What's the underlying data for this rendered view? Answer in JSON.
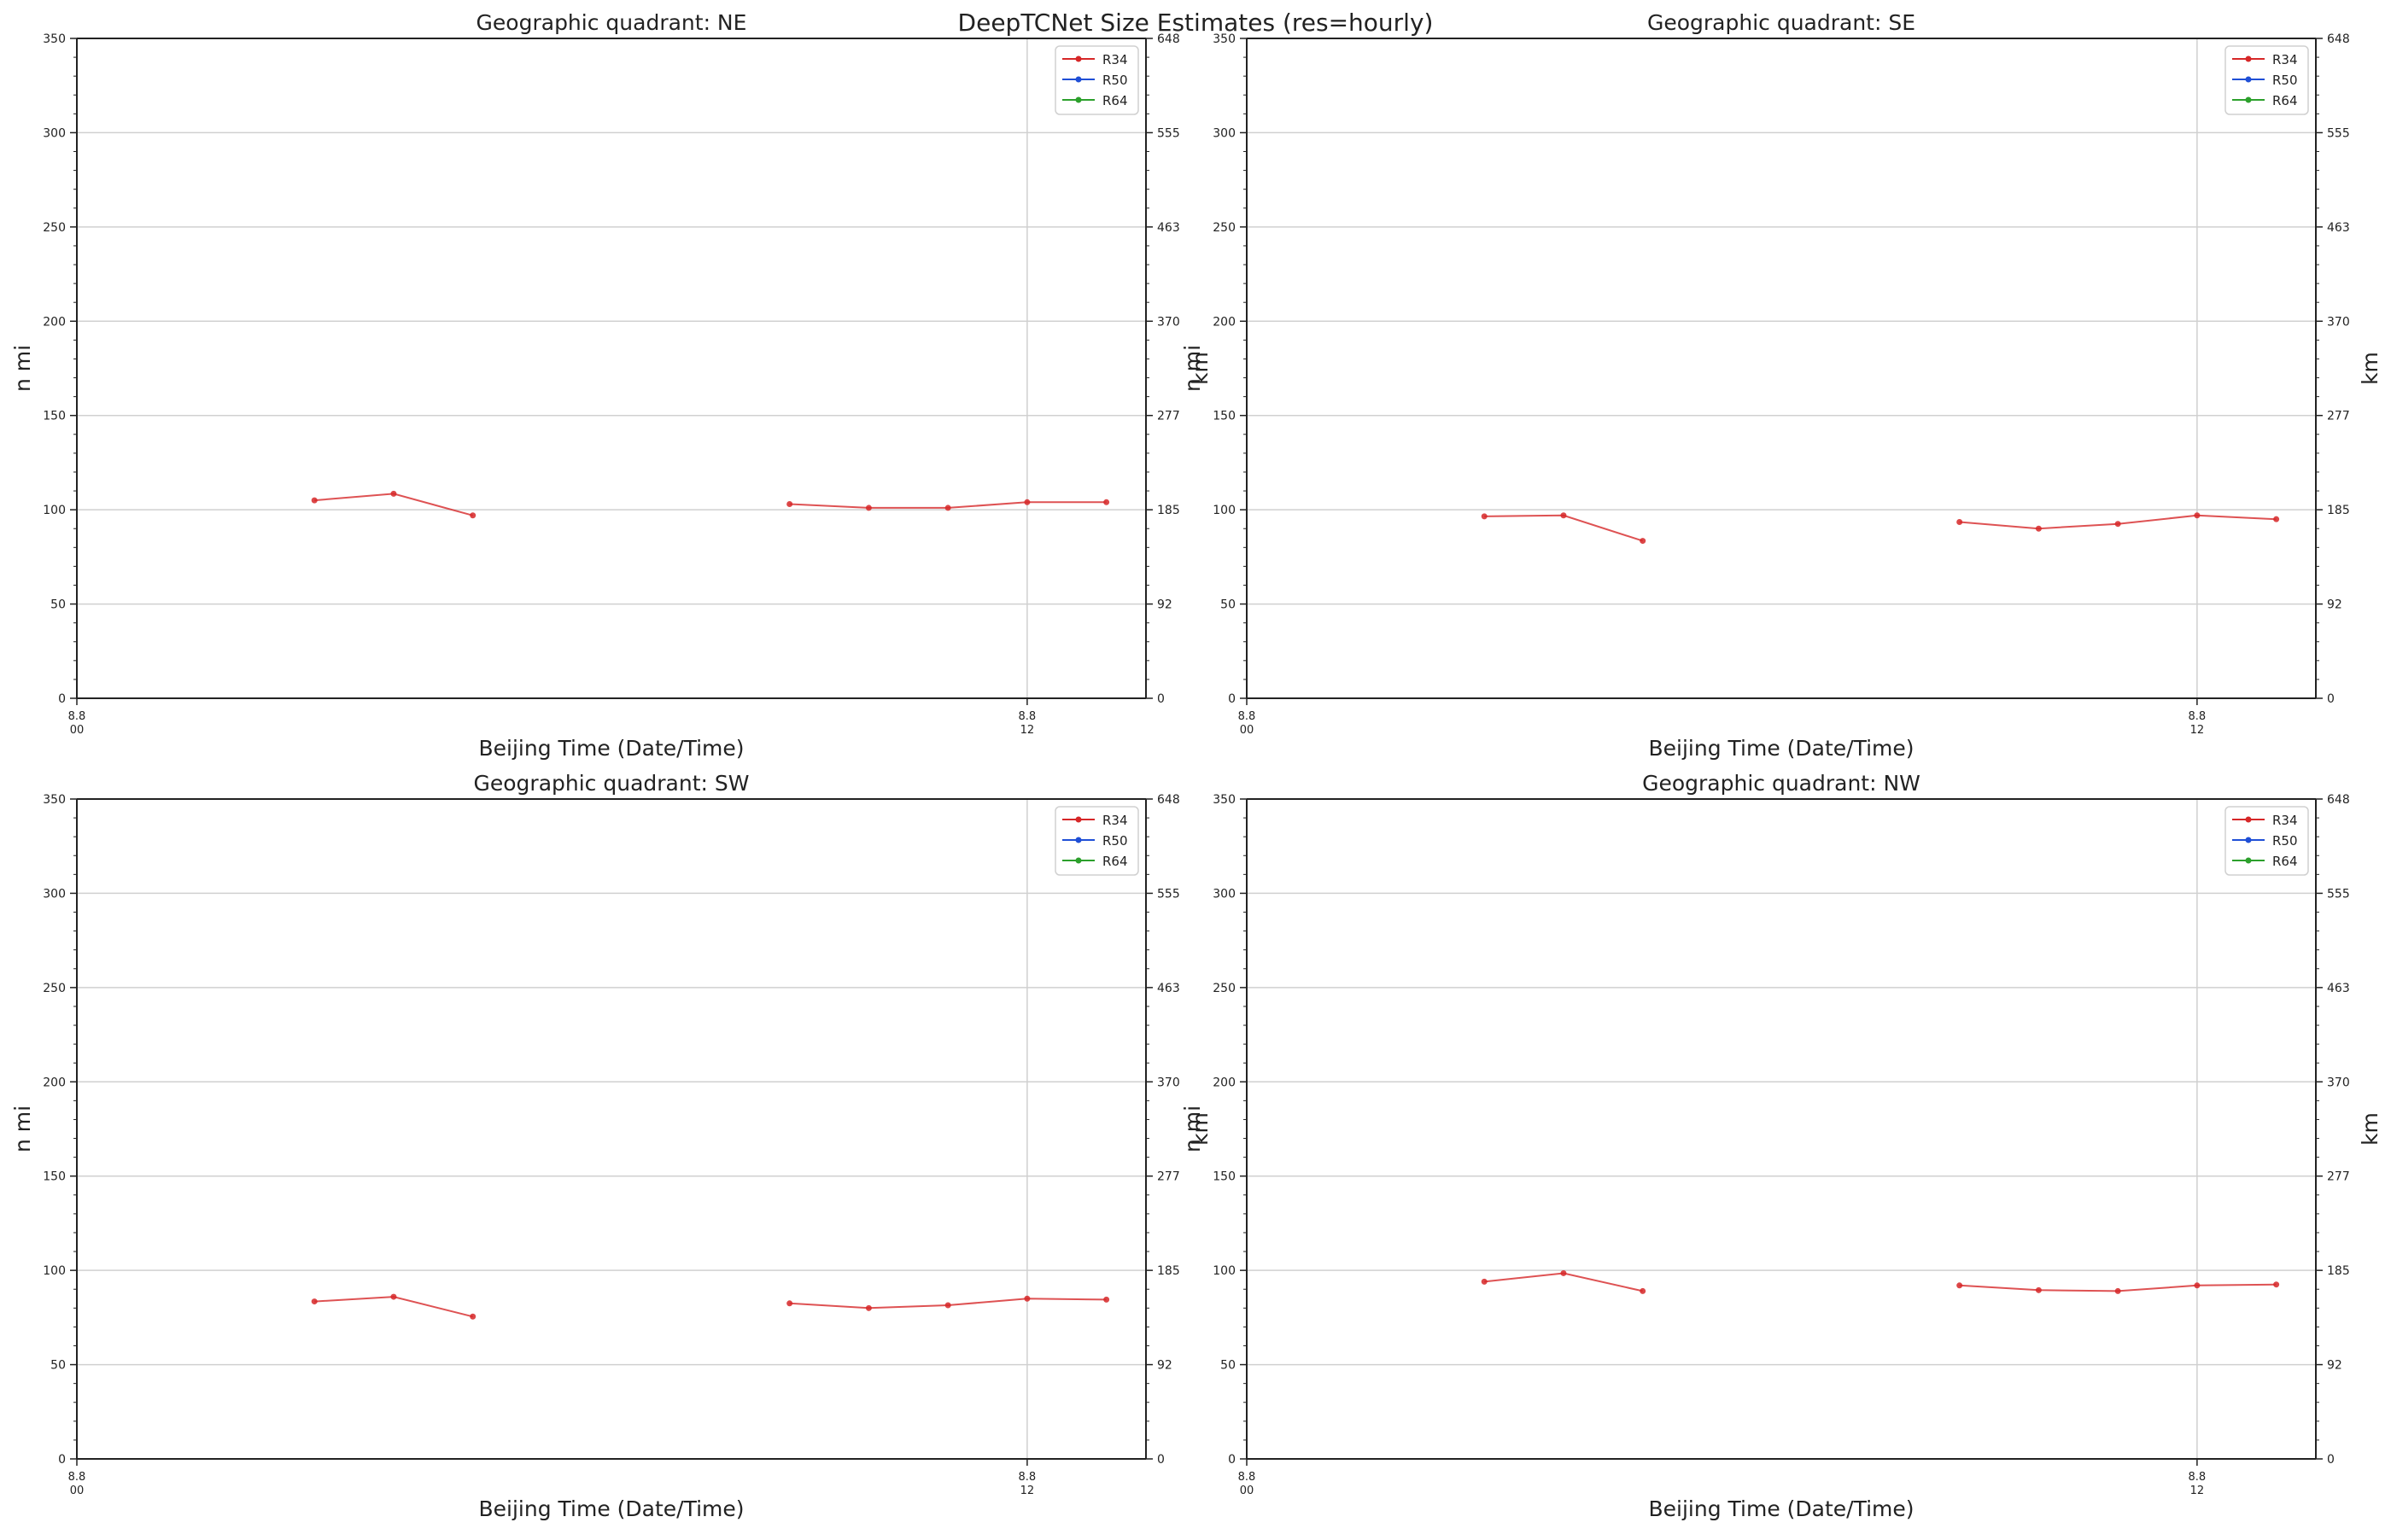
{
  "figure": {
    "suptitle": "DeepTCNet Size Estimates (res=hourly)"
  },
  "chart_data": [
    {
      "type": "line",
      "title": "Geographic quadrant: NE",
      "xlabel": "Beijing Time (Date/Time)",
      "ylabel": "n mi",
      "ylabel_right": "km",
      "x_ticks": [
        {
          "label": "8.8\n00",
          "hour": 0
        },
        {
          "label": "8.8\n12",
          "hour": 12
        }
      ],
      "xlim_hours": [
        0,
        13.5
      ],
      "ylim": [
        0,
        350
      ],
      "y_ticks": [
        0,
        50,
        100,
        150,
        200,
        250,
        300,
        350
      ],
      "y_right_ticks": [
        "0",
        "92",
        "185",
        "277",
        "370",
        "463",
        "555",
        "648"
      ],
      "grid": true,
      "legend_location": "top-right",
      "series": [
        {
          "name": "R34",
          "color": "#d62728",
          "points": [
            [
              3,
              105
            ],
            [
              4,
              108.5
            ],
            [
              5,
              97
            ],
            null,
            [
              9,
              103
            ],
            [
              10,
              101
            ],
            [
              11,
              101
            ],
            [
              12,
              104
            ],
            [
              13,
              104
            ]
          ]
        },
        {
          "name": "R50",
          "color": "#1f4fd6",
          "points": []
        },
        {
          "name": "R64",
          "color": "#2ca02c",
          "points": []
        }
      ]
    },
    {
      "type": "line",
      "title": "Geographic quadrant: SE",
      "xlabel": "Beijing Time (Date/Time)",
      "ylabel": "n mi",
      "ylabel_right": "km",
      "x_ticks": [
        {
          "label": "8.8\n00",
          "hour": 0
        },
        {
          "label": "8.8\n12",
          "hour": 12
        }
      ],
      "xlim_hours": [
        0,
        13.5
      ],
      "ylim": [
        0,
        350
      ],
      "y_ticks": [
        0,
        50,
        100,
        150,
        200,
        250,
        300,
        350
      ],
      "y_right_ticks": [
        "0",
        "92",
        "185",
        "277",
        "370",
        "463",
        "555",
        "648"
      ],
      "grid": true,
      "legend_location": "top-right",
      "series": [
        {
          "name": "R34",
          "color": "#d62728",
          "points": [
            [
              3,
              96.5
            ],
            [
              4,
              97
            ],
            [
              5,
              83.5
            ],
            null,
            [
              9,
              93.5
            ],
            [
              10,
              90
            ],
            [
              11,
              92.5
            ],
            [
              12,
              97
            ],
            [
              13,
              95
            ]
          ]
        },
        {
          "name": "R50",
          "color": "#1f4fd6",
          "points": []
        },
        {
          "name": "R64",
          "color": "#2ca02c",
          "points": []
        }
      ]
    },
    {
      "type": "line",
      "title": "Geographic quadrant: SW",
      "xlabel": "Beijing Time (Date/Time)",
      "ylabel": "n mi",
      "ylabel_right": "km",
      "x_ticks": [
        {
          "label": "8.8\n00",
          "hour": 0
        },
        {
          "label": "8.8\n12",
          "hour": 12
        }
      ],
      "xlim_hours": [
        0,
        13.5
      ],
      "ylim": [
        0,
        350
      ],
      "y_ticks": [
        0,
        50,
        100,
        150,
        200,
        250,
        300,
        350
      ],
      "y_right_ticks": [
        "0",
        "92",
        "185",
        "277",
        "370",
        "463",
        "555",
        "648"
      ],
      "grid": true,
      "legend_location": "top-right",
      "series": [
        {
          "name": "R34",
          "color": "#d62728",
          "points": [
            [
              3,
              83.5
            ],
            [
              4,
              86
            ],
            [
              5,
              75.5
            ],
            null,
            [
              9,
              82.5
            ],
            [
              10,
              80
            ],
            [
              11,
              81.5
            ],
            [
              12,
              85
            ],
            [
              13,
              84.5
            ]
          ]
        },
        {
          "name": "R50",
          "color": "#1f4fd6",
          "points": []
        },
        {
          "name": "R64",
          "color": "#2ca02c",
          "points": []
        }
      ]
    },
    {
      "type": "line",
      "title": "Geographic quadrant: NW",
      "xlabel": "Beijing Time (Date/Time)",
      "ylabel": "n mi",
      "ylabel_right": "km",
      "x_ticks": [
        {
          "label": "8.8\n00",
          "hour": 0
        },
        {
          "label": "8.8\n12",
          "hour": 12
        }
      ],
      "xlim_hours": [
        0,
        13.5
      ],
      "ylim": [
        0,
        350
      ],
      "y_ticks": [
        0,
        50,
        100,
        150,
        200,
        250,
        300,
        350
      ],
      "y_right_ticks": [
        "0",
        "92",
        "185",
        "277",
        "370",
        "463",
        "555",
        "648"
      ],
      "grid": true,
      "legend_location": "top-right",
      "series": [
        {
          "name": "R34",
          "color": "#d62728",
          "points": [
            [
              3,
              94
            ],
            [
              4,
              98.5
            ],
            [
              5,
              89
            ],
            null,
            [
              9,
              92
            ],
            [
              10,
              89.5
            ],
            [
              11,
              89
            ],
            [
              12,
              92
            ],
            [
              13,
              92.5
            ]
          ]
        },
        {
          "name": "R50",
          "color": "#1f4fd6",
          "points": []
        },
        {
          "name": "R64",
          "color": "#2ca02c",
          "points": []
        }
      ]
    }
  ]
}
